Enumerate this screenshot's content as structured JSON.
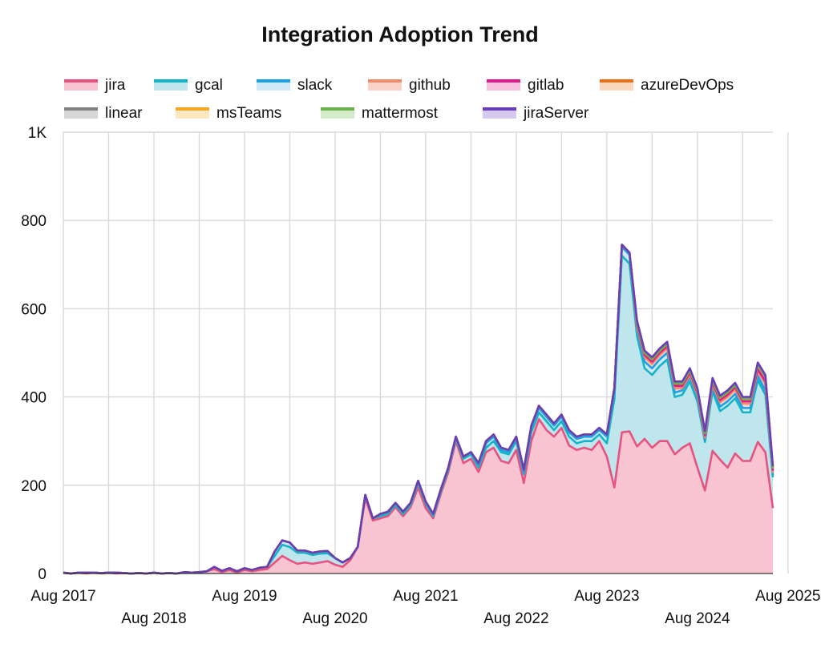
{
  "chart_data": {
    "type": "area",
    "stacked": true,
    "title": "Integration Adoption Trend",
    "xlabel": "",
    "ylabel": "",
    "ylim": [
      0,
      1000
    ],
    "yticks": [
      {
        "value": 0,
        "label": "0"
      },
      {
        "value": 200,
        "label": "200"
      },
      {
        "value": 400,
        "label": "400"
      },
      {
        "value": 600,
        "label": "600"
      },
      {
        "value": 800,
        "label": "800"
      },
      {
        "value": 1000,
        "label": "1K"
      }
    ],
    "xticks": [
      {
        "label": "Aug 2017",
        "month": 0
      },
      {
        "label": "Aug 2018",
        "month": 12
      },
      {
        "label": "Aug 2019",
        "month": 24
      },
      {
        "label": "Aug 2020",
        "month": 36
      },
      {
        "label": "Aug 2021",
        "month": 48
      },
      {
        "label": "Aug 2022",
        "month": 60
      },
      {
        "label": "Aug 2023",
        "month": 72
      },
      {
        "label": "Aug 2024",
        "month": 84
      },
      {
        "label": "Aug 2025",
        "month": 96
      }
    ],
    "x_start": "Aug 2017",
    "x_end": "Aug 2025",
    "legend_position": "top",
    "series": [
      {
        "name": "jira",
        "color": "#e8527f",
        "fill": "#f8c4d2",
        "values": [
          2,
          0,
          2,
          0,
          2,
          0,
          2,
          0,
          1,
          0,
          1,
          0,
          2,
          0,
          1,
          0,
          3,
          2,
          3,
          5,
          10,
          3,
          8,
          2,
          8,
          5,
          8,
          10,
          25,
          40,
          30,
          22,
          25,
          22,
          25,
          28,
          20,
          15,
          30,
          60,
          170,
          120,
          125,
          130,
          150,
          130,
          150,
          195,
          148,
          125,
          180,
          230,
          300,
          250,
          260,
          230,
          275,
          285,
          255,
          250,
          280,
          205,
          300,
          350,
          325,
          310,
          330,
          290,
          280,
          285,
          280,
          300,
          265,
          195,
          320,
          322,
          288,
          305,
          285,
          300,
          300,
          270,
          285,
          295,
          240,
          188,
          278,
          258,
          240,
          272,
          255,
          255,
          298,
          275,
          148
        ]
      },
      {
        "name": "gcal",
        "color": "#14b4c8",
        "fill": "#bfe6ec",
        "values": [
          0,
          0,
          0,
          2,
          0,
          1,
          0,
          2,
          0,
          0,
          0,
          0,
          0,
          0,
          0,
          0,
          0,
          0,
          0,
          0,
          5,
          3,
          4,
          3,
          4,
          3,
          5,
          5,
          15,
          25,
          30,
          25,
          22,
          20,
          20,
          18,
          15,
          10,
          5,
          0,
          8,
          5,
          5,
          5,
          5,
          5,
          5,
          10,
          10,
          5,
          5,
          5,
          5,
          10,
          10,
          10,
          10,
          15,
          20,
          20,
          20,
          20,
          20,
          15,
          20,
          15,
          15,
          20,
          15,
          15,
          20,
          15,
          30,
          200,
          400,
          380,
          250,
          160,
          165,
          170,
          185,
          130,
          120,
          140,
          150,
          110,
          135,
          110,
          140,
          125,
          110,
          110,
          140,
          130,
          70
        ]
      },
      {
        "name": "slack",
        "color": "#1da1e6",
        "fill": "#cfe9f8",
        "values": [
          0,
          0,
          0,
          0,
          0,
          0,
          0,
          0,
          0,
          0,
          0,
          0,
          0,
          0,
          0,
          0,
          0,
          0,
          0,
          0,
          0,
          0,
          0,
          0,
          0,
          0,
          0,
          0,
          10,
          10,
          10,
          5,
          5,
          5,
          5,
          5,
          0,
          0,
          0,
          0,
          0,
          0,
          5,
          5,
          5,
          5,
          5,
          5,
          5,
          5,
          5,
          5,
          5,
          5,
          5,
          5,
          10,
          10,
          5,
          5,
          5,
          5,
          10,
          10,
          10,
          10,
          10,
          10,
          10,
          10,
          10,
          10,
          15,
          20,
          20,
          20,
          15,
          15,
          15,
          15,
          15,
          10,
          10,
          10,
          10,
          5,
          10,
          10,
          10,
          10,
          10,
          10,
          10,
          10,
          5
        ]
      },
      {
        "name": "github",
        "color": "#f08a6b",
        "fill": "#fbd3c6",
        "values": [
          0,
          0,
          0,
          0,
          0,
          0,
          0,
          0,
          0,
          0,
          0,
          0,
          0,
          0,
          0,
          0,
          0,
          0,
          0,
          0,
          0,
          0,
          0,
          0,
          0,
          0,
          0,
          0,
          0,
          0,
          0,
          0,
          0,
          0,
          0,
          0,
          0,
          0,
          0,
          0,
          0,
          0,
          0,
          0,
          0,
          0,
          0,
          0,
          0,
          0,
          0,
          0,
          0,
          0,
          0,
          5,
          5,
          5,
          5,
          5,
          5,
          5,
          5,
          5,
          5,
          5,
          5,
          5,
          5,
          5,
          5,
          5,
          5,
          5,
          5,
          5,
          5,
          10,
          10,
          10,
          10,
          10,
          5,
          5,
          5,
          5,
          5,
          10,
          10,
          10,
          10,
          10,
          10,
          15,
          5
        ]
      },
      {
        "name": "gitlab",
        "color": "#e0198c",
        "fill": "#f7c3e0",
        "values": [
          0,
          0,
          0,
          0,
          0,
          0,
          0,
          0,
          0,
          0,
          0,
          0,
          0,
          0,
          0,
          0,
          0,
          0,
          0,
          0,
          0,
          0,
          0,
          0,
          0,
          0,
          0,
          0,
          0,
          0,
          0,
          0,
          0,
          0,
          0,
          0,
          0,
          0,
          0,
          0,
          0,
          0,
          0,
          0,
          0,
          0,
          0,
          0,
          0,
          0,
          0,
          0,
          0,
          0,
          0,
          0,
          0,
          0,
          0,
          0,
          0,
          0,
          0,
          0,
          0,
          0,
          0,
          0,
          0,
          0,
          0,
          0,
          0,
          0,
          0,
          0,
          5,
          5,
          5,
          5,
          5,
          5,
          5,
          5,
          5,
          5,
          5,
          5,
          5,
          5,
          5,
          5,
          5,
          5,
          5
        ]
      },
      {
        "name": "azureDevOps",
        "color": "#e8711a",
        "fill": "#fbd7bd",
        "values": [
          0,
          0,
          0,
          0,
          0,
          0,
          0,
          0,
          0,
          0,
          0,
          0,
          0,
          0,
          0,
          0,
          0,
          0,
          0,
          0,
          0,
          0,
          0,
          0,
          0,
          0,
          0,
          0,
          0,
          0,
          0,
          0,
          0,
          0,
          0,
          0,
          0,
          0,
          0,
          0,
          0,
          0,
          0,
          0,
          0,
          0,
          0,
          0,
          0,
          0,
          0,
          0,
          0,
          0,
          0,
          0,
          0,
          0,
          0,
          0,
          0,
          0,
          0,
          0,
          0,
          0,
          0,
          0,
          0,
          0,
          0,
          0,
          0,
          0,
          0,
          0,
          5,
          5,
          5,
          5,
          5,
          5,
          5,
          5,
          5,
          5,
          5,
          5,
          5,
          5,
          5,
          5,
          10,
          10,
          5
        ]
      },
      {
        "name": "linear",
        "color": "#808080",
        "fill": "#d6d6d6",
        "values": [
          0,
          0,
          0,
          0,
          0,
          0,
          0,
          0,
          0,
          0,
          0,
          0,
          0,
          0,
          0,
          0,
          0,
          0,
          0,
          0,
          0,
          0,
          0,
          0,
          0,
          0,
          0,
          0,
          0,
          0,
          0,
          0,
          0,
          0,
          0,
          0,
          0,
          0,
          0,
          0,
          0,
          0,
          0,
          0,
          0,
          0,
          0,
          0,
          0,
          0,
          0,
          0,
          0,
          0,
          0,
          0,
          0,
          0,
          0,
          0,
          0,
          0,
          0,
          0,
          0,
          0,
          0,
          0,
          0,
          0,
          0,
          0,
          0,
          0,
          0,
          0,
          0,
          0,
          0,
          0,
          0,
          0,
          0,
          0,
          0,
          0,
          0,
          0,
          0,
          0,
          0,
          0,
          0,
          0,
          0
        ]
      },
      {
        "name": "msTeams",
        "color": "#f6a623",
        "fill": "#fde7c1",
        "values": [
          0,
          0,
          0,
          0,
          0,
          0,
          0,
          0,
          0,
          0,
          0,
          0,
          0,
          0,
          0,
          0,
          0,
          0,
          0,
          0,
          0,
          0,
          0,
          0,
          0,
          0,
          0,
          0,
          0,
          0,
          0,
          0,
          0,
          0,
          0,
          0,
          0,
          0,
          0,
          0,
          0,
          0,
          0,
          0,
          0,
          0,
          0,
          0,
          0,
          0,
          0,
          0,
          0,
          0,
          0,
          0,
          0,
          0,
          0,
          0,
          0,
          0,
          0,
          0,
          0,
          0,
          0,
          0,
          0,
          0,
          0,
          0,
          0,
          0,
          0,
          0,
          0,
          0,
          0,
          0,
          0,
          0,
          0,
          0,
          0,
          0,
          0,
          0,
          0,
          0,
          0,
          0,
          0,
          0,
          0
        ]
      },
      {
        "name": "mattermost",
        "color": "#6ab04c",
        "fill": "#d4ebc9",
        "values": [
          0,
          0,
          0,
          0,
          0,
          0,
          0,
          0,
          0,
          0,
          0,
          0,
          0,
          0,
          0,
          0,
          0,
          0,
          0,
          0,
          0,
          0,
          0,
          0,
          0,
          0,
          0,
          0,
          0,
          0,
          0,
          0,
          0,
          0,
          0,
          0,
          0,
          0,
          0,
          0,
          0,
          0,
          0,
          0,
          0,
          0,
          0,
          0,
          0,
          0,
          0,
          0,
          0,
          0,
          0,
          0,
          0,
          0,
          0,
          0,
          0,
          0,
          0,
          0,
          0,
          0,
          0,
          0,
          0,
          0,
          0,
          0,
          0,
          0,
          0,
          0,
          0,
          0,
          0,
          0,
          0,
          0,
          0,
          0,
          0,
          0,
          0,
          0,
          0,
          0,
          0,
          0,
          0,
          0,
          0
        ]
      },
      {
        "name": "jiraServer",
        "color": "#6a3db8",
        "fill": "#d6c8ee",
        "values": [
          0,
          0,
          0,
          0,
          0,
          0,
          0,
          0,
          0,
          0,
          0,
          0,
          0,
          0,
          0,
          0,
          0,
          0,
          0,
          0,
          0,
          0,
          0,
          0,
          0,
          0,
          0,
          0,
          0,
          0,
          0,
          0,
          0,
          0,
          0,
          0,
          0,
          0,
          0,
          0,
          0,
          0,
          0,
          0,
          0,
          0,
          0,
          0,
          0,
          0,
          0,
          0,
          0,
          0,
          0,
          0,
          0,
          0,
          0,
          0,
          0,
          0,
          0,
          0,
          0,
          0,
          0,
          0,
          0,
          0,
          0,
          0,
          0,
          0,
          0,
          0,
          5,
          5,
          5,
          5,
          5,
          5,
          5,
          5,
          5,
          5,
          5,
          5,
          5,
          5,
          5,
          5,
          5,
          5,
          5
        ]
      }
    ]
  }
}
